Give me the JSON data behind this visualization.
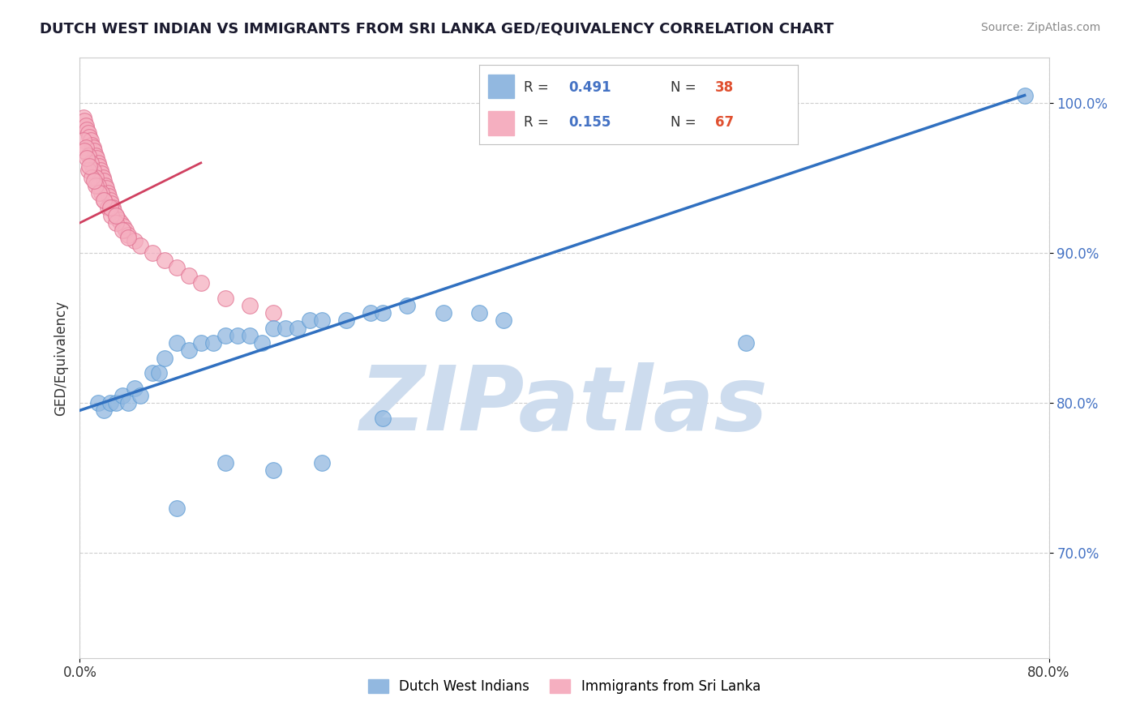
{
  "title": "DUTCH WEST INDIAN VS IMMIGRANTS FROM SRI LANKA GED/EQUIVALENCY CORRELATION CHART",
  "source": "Source: ZipAtlas.com",
  "ylabel": "GED/Equivalency",
  "xlim": [
    0.0,
    0.8
  ],
  "ylim": [
    0.63,
    1.03
  ],
  "yticks": [
    0.7,
    0.8,
    0.9,
    1.0
  ],
  "yticklabels": [
    "70.0%",
    "80.0%",
    "90.0%",
    "100.0%"
  ],
  "grid_color": "#c8c8c8",
  "background_color": "#ffffff",
  "watermark": "ZIPatlas",
  "watermark_color": "#cddcee",
  "blue_color": "#92b8e0",
  "pink_color": "#f5afc0",
  "blue_edge_color": "#5b9bd5",
  "pink_edge_color": "#e07090",
  "blue_line_color": "#3070c0",
  "pink_line_color": "#d04060",
  "blue_line_x": [
    0.0,
    0.78
  ],
  "blue_line_y": [
    0.795,
    1.005
  ],
  "pink_line_x": [
    0.0,
    0.1
  ],
  "pink_line_y": [
    0.92,
    0.96
  ],
  "blue_scatter_x": [
    0.015,
    0.02,
    0.025,
    0.03,
    0.035,
    0.04,
    0.045,
    0.05,
    0.06,
    0.065,
    0.07,
    0.08,
    0.09,
    0.1,
    0.11,
    0.12,
    0.13,
    0.14,
    0.15,
    0.16,
    0.17,
    0.18,
    0.19,
    0.2,
    0.22,
    0.24,
    0.25,
    0.27,
    0.3,
    0.33,
    0.35,
    0.08,
    0.12,
    0.16,
    0.2,
    0.25,
    0.55,
    0.78
  ],
  "blue_scatter_y": [
    0.8,
    0.795,
    0.8,
    0.8,
    0.805,
    0.8,
    0.81,
    0.805,
    0.82,
    0.82,
    0.83,
    0.84,
    0.835,
    0.84,
    0.84,
    0.845,
    0.845,
    0.845,
    0.84,
    0.85,
    0.85,
    0.85,
    0.855,
    0.855,
    0.855,
    0.86,
    0.86,
    0.865,
    0.86,
    0.86,
    0.855,
    0.73,
    0.76,
    0.755,
    0.76,
    0.79,
    0.84,
    1.005
  ],
  "pink_scatter_x": [
    0.003,
    0.004,
    0.005,
    0.006,
    0.007,
    0.008,
    0.009,
    0.01,
    0.011,
    0.012,
    0.013,
    0.014,
    0.015,
    0.016,
    0.017,
    0.018,
    0.019,
    0.02,
    0.021,
    0.022,
    0.023,
    0.024,
    0.025,
    0.026,
    0.027,
    0.028,
    0.03,
    0.032,
    0.034,
    0.036,
    0.038,
    0.04,
    0.045,
    0.05,
    0.06,
    0.07,
    0.08,
    0.09,
    0.1,
    0.12,
    0.14,
    0.16,
    0.003,
    0.005,
    0.007,
    0.009,
    0.011,
    0.013,
    0.015,
    0.018,
    0.02,
    0.023,
    0.026,
    0.03,
    0.035,
    0.04,
    0.007,
    0.01,
    0.013,
    0.016,
    0.02,
    0.025,
    0.03,
    0.004,
    0.006,
    0.008,
    0.012
  ],
  "pink_scatter_y": [
    0.99,
    0.988,
    0.985,
    0.982,
    0.98,
    0.977,
    0.975,
    0.972,
    0.97,
    0.968,
    0.965,
    0.963,
    0.96,
    0.958,
    0.955,
    0.953,
    0.95,
    0.948,
    0.945,
    0.943,
    0.94,
    0.938,
    0.935,
    0.933,
    0.93,
    0.928,
    0.925,
    0.922,
    0.92,
    0.918,
    0.915,
    0.912,
    0.908,
    0.905,
    0.9,
    0.895,
    0.89,
    0.885,
    0.88,
    0.87,
    0.865,
    0.86,
    0.975,
    0.97,
    0.965,
    0.96,
    0.955,
    0.95,
    0.945,
    0.94,
    0.935,
    0.93,
    0.925,
    0.92,
    0.915,
    0.91,
    0.955,
    0.95,
    0.945,
    0.94,
    0.935,
    0.93,
    0.925,
    0.968,
    0.963,
    0.958,
    0.948
  ]
}
